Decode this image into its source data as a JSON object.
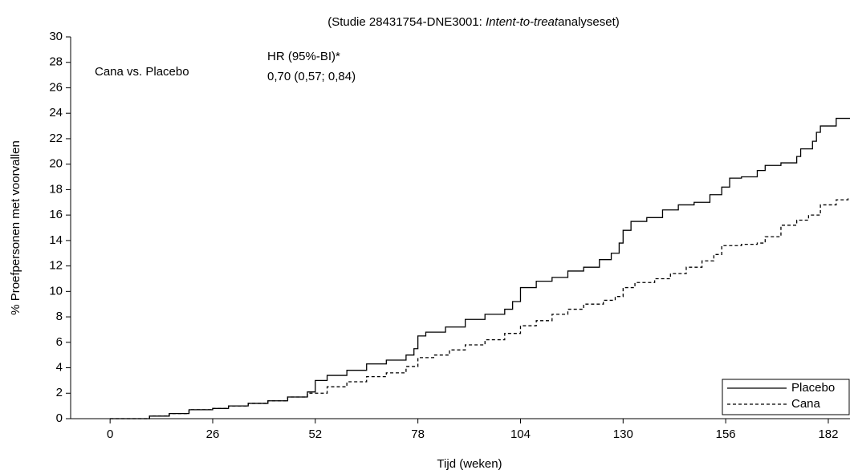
{
  "chart_data": {
    "type": "line",
    "title_parts": [
      "(Studie 28431754-DNE3001: ",
      "Intent-to-treat",
      "analyseset)"
    ],
    "x_label": "Tijd (weken)",
    "y_label": "% Proefpersonen met voorvallen",
    "annotations": [
      "Cana vs. Placebo",
      "HR (95%-BI)*",
      "0,70 (0,57; 0,84)"
    ],
    "step": true,
    "legend": "lower right",
    "xlim": [
      -10,
      187.5
    ],
    "ylim": [
      0,
      30
    ],
    "xticks": [
      0,
      26,
      52,
      78,
      104,
      130,
      156,
      182
    ],
    "yticks": [
      0,
      2,
      4,
      6,
      8,
      10,
      12,
      14,
      16,
      18,
      20,
      22,
      24,
      26,
      28,
      30
    ],
    "series": [
      {
        "name": "Placebo",
        "color": "#000000",
        "dash": false,
        "x": [
          0,
          10,
          15,
          20,
          26,
          30,
          35,
          40,
          45,
          50,
          52,
          55,
          60,
          65,
          70,
          75,
          77,
          78,
          80,
          85,
          90,
          95,
          100,
          102,
          104,
          108,
          112,
          116,
          120,
          124,
          127,
          129,
          130,
          132,
          136,
          140,
          144,
          148,
          152,
          155,
          157,
          160,
          164,
          166,
          170,
          174,
          175,
          178,
          179,
          180,
          184,
          187.5
        ],
        "values": [
          0,
          0.2,
          0.4,
          0.7,
          0.8,
          1.0,
          1.2,
          1.4,
          1.7,
          2.1,
          3.0,
          3.4,
          3.8,
          4.3,
          4.6,
          5.0,
          5.5,
          6.5,
          6.8,
          7.2,
          7.8,
          8.2,
          8.6,
          9.2,
          10.3,
          10.8,
          11.1,
          11.6,
          11.9,
          12.5,
          13.0,
          13.8,
          14.8,
          15.5,
          15.8,
          16.4,
          16.8,
          17.0,
          17.6,
          18.2,
          18.9,
          19.0,
          19.5,
          19.9,
          20.1,
          20.6,
          21.2,
          21.8,
          22.5,
          23.0,
          23.6,
          23.6
        ]
      },
      {
        "name": "Cana",
        "color": "#000000",
        "dash": true,
        "x": [
          0,
          10,
          15,
          20,
          26,
          30,
          35,
          40,
          45,
          50,
          55,
          60,
          65,
          70,
          75,
          78,
          82,
          86,
          90,
          95,
          100,
          104,
          108,
          112,
          116,
          120,
          125,
          128,
          130,
          133,
          138,
          142,
          146,
          150,
          153,
          155,
          160,
          164,
          166,
          170,
          174,
          177,
          180,
          184,
          187
        ],
        "values": [
          0,
          0.2,
          0.4,
          0.7,
          0.8,
          1.0,
          1.2,
          1.4,
          1.7,
          2.0,
          2.5,
          2.9,
          3.3,
          3.6,
          4.1,
          4.8,
          5.0,
          5.4,
          5.8,
          6.2,
          6.7,
          7.3,
          7.7,
          8.2,
          8.6,
          9.0,
          9.3,
          9.6,
          10.3,
          10.7,
          11.0,
          11.4,
          11.9,
          12.4,
          12.9,
          13.6,
          13.7,
          13.8,
          14.3,
          15.2,
          15.6,
          16.0,
          16.8,
          17.2,
          17.5
        ]
      }
    ]
  }
}
